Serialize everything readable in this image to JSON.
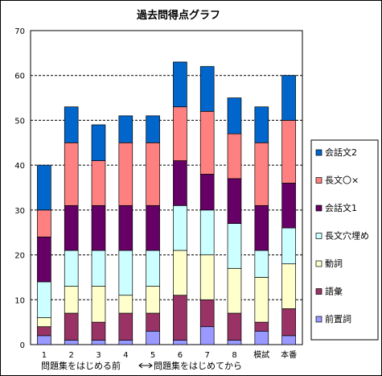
{
  "chart_data": {
    "type": "bar",
    "stacked": true,
    "title": "過去問得点グラフ",
    "xlabel": "",
    "ylabel": "",
    "ylim": [
      0,
      70
    ],
    "yticks": [
      0,
      10,
      20,
      30,
      40,
      50,
      60,
      70
    ],
    "grid": "dashed horizontal",
    "legend_position": "right",
    "categories": [
      "1",
      "2",
      "3",
      "4",
      "5",
      "6",
      "7",
      "8",
      "模試",
      "本番"
    ],
    "series": [
      {
        "name": "前置詞",
        "color": "#9999ff",
        "values": [
          2,
          1,
          1,
          1,
          3,
          1,
          4,
          1,
          3,
          2
        ]
      },
      {
        "name": "語彙",
        "color": "#993366",
        "values": [
          2,
          6,
          4,
          6,
          4,
          10,
          6,
          6,
          2,
          6
        ]
      },
      {
        "name": "動詞",
        "color": "#ffffcc",
        "values": [
          2,
          6,
          8,
          4,
          6,
          10,
          10,
          10,
          10,
          10
        ]
      },
      {
        "name": "長文穴埋め",
        "color": "#ccffff",
        "values": [
          8,
          8,
          8,
          10,
          8,
          10,
          10,
          10,
          6,
          8
        ]
      },
      {
        "name": "会話文1",
        "color": "#660066",
        "values": [
          10,
          10,
          10,
          10,
          10,
          10,
          8,
          10,
          10,
          10
        ]
      },
      {
        "name": "長文〇×",
        "color": "#ff8080",
        "values": [
          6,
          14,
          10,
          14,
          14,
          12,
          14,
          10,
          14,
          14
        ]
      },
      {
        "name": "会話文2",
        "color": "#0066cc",
        "values": [
          10,
          8,
          8,
          6,
          6,
          10,
          10,
          8,
          8,
          10
        ]
      }
    ],
    "annotations": [
      "問題集をはじめる前",
      "問題集をはじめてから"
    ]
  }
}
